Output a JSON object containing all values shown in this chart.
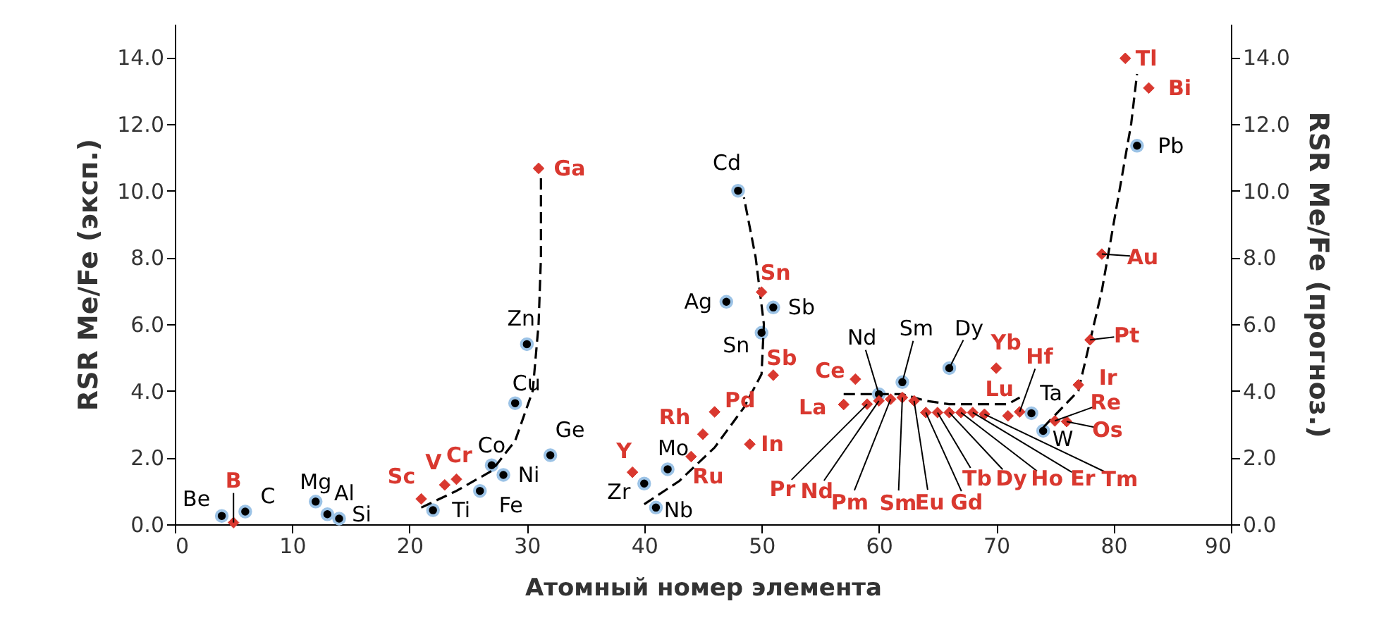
{
  "chart_data": {
    "type": "scatter",
    "xlabel": "Атомный номер элемента",
    "ylabel": "RSR Me/Fe (эксп.)",
    "y2label": "RSR Me/Fe (прогноз.)",
    "xlim": [
      0,
      90
    ],
    "xticks": [
      0,
      10,
      20,
      30,
      40,
      50,
      60,
      70,
      80,
      90
    ],
    "ylim": [
      0,
      15
    ],
    "yticks": [
      {
        "value": 0,
        "label": "0.0"
      },
      {
        "value": 2,
        "label": "2.0"
      },
      {
        "value": 4,
        "label": "4.0"
      },
      {
        "value": 6,
        "label": "6.0"
      },
      {
        "value": 8,
        "label": "8.0"
      },
      {
        "value": 10,
        "label": "10.0"
      },
      {
        "value": 12,
        "label": "12.0"
      },
      {
        "value": 14,
        "label": "14.0"
      }
    ],
    "y2lim": [
      0,
      15
    ],
    "y2ticks": [
      {
        "value": 0,
        "label": "0.0"
      },
      {
        "value": 2,
        "label": "2.0"
      },
      {
        "value": 4,
        "label": "4.0"
      },
      {
        "value": 6,
        "label": "6.0"
      },
      {
        "value": 8,
        "label": "8.0"
      },
      {
        "value": 10,
        "label": "10.0"
      },
      {
        "value": 12,
        "label": "12.0"
      },
      {
        "value": 14,
        "label": "14.0"
      }
    ],
    "grid": false,
    "series": [
      {
        "type": "scatter",
        "marker": "circle",
        "color": "#000000",
        "x": [
          4,
          6,
          12,
          13,
          14,
          22,
          26,
          27,
          28,
          29,
          30,
          32,
          40,
          41,
          42,
          47,
          48,
          50,
          51,
          60,
          62,
          66,
          73,
          74,
          82
        ],
        "values": [
          0.25,
          0.38,
          0.68,
          0.3,
          0.17,
          0.42,
          1.0,
          1.77,
          1.48,
          3.63,
          5.4,
          2.07,
          1.22,
          0.5,
          1.65,
          6.67,
          10.0,
          5.74,
          6.5,
          3.9,
          4.26,
          4.68,
          3.33,
          2.8,
          11.35
        ]
      },
      {
        "type": "scatter",
        "marker": "diamond",
        "axis": "y2",
        "color": "#d9382f",
        "x": [
          5,
          21,
          23,
          24,
          31,
          39,
          44,
          45,
          46,
          49,
          50,
          51,
          57,
          58,
          59,
          60,
          61,
          62,
          63,
          64,
          65,
          66,
          67,
          68,
          69,
          70,
          71,
          72,
          75,
          76,
          77,
          78,
          79,
          81,
          83
        ],
        "values": [
          0.05,
          0.76,
          1.18,
          1.35,
          10.67,
          1.56,
          2.03,
          2.7,
          3.37,
          2.4,
          6.96,
          4.47,
          3.59,
          4.35,
          3.6,
          3.7,
          3.75,
          3.8,
          3.7,
          3.35,
          3.35,
          3.35,
          3.35,
          3.35,
          3.3,
          4.68,
          3.25,
          3.37,
          3.1,
          3.08,
          4.18,
          5.53,
          8.1,
          13.97,
          13.08
        ]
      },
      {
        "type": "line",
        "line_style": "dashed",
        "marker": "none",
        "color": "#000000",
        "x": [
          21,
          24,
          27,
          29,
          30.5,
          31,
          31.2,
          31.2
        ],
        "values": [
          0.5,
          1.0,
          1.6,
          2.5,
          4.0,
          6.0,
          8.0,
          10.4
        ]
      },
      {
        "type": "line",
        "line_style": "dashed",
        "marker": "none",
        "color": "#000000",
        "x": [
          40,
          43,
          46,
          48.5,
          50,
          50.2,
          49.5,
          48.5
        ],
        "values": [
          0.6,
          1.3,
          2.3,
          3.5,
          4.5,
          6.0,
          8.0,
          9.8
        ]
      },
      {
        "type": "line",
        "line_style": "dashed",
        "marker": "none",
        "color": "#000000",
        "x": [
          57,
          62,
          64,
          66,
          71,
          72
        ],
        "values": [
          3.9,
          3.9,
          3.7,
          3.6,
          3.6,
          3.8
        ]
      },
      {
        "type": "line",
        "line_style": "dashed",
        "marker": "none",
        "color": "#000000",
        "x": [
          74,
          77,
          79,
          80.5,
          81.5,
          82
        ],
        "values": [
          2.9,
          4.0,
          7.0,
          10.0,
          12.0,
          13.5
        ]
      }
    ],
    "annotations": [
      {
        "text": "Be",
        "x": 4,
        "y": 0.25
      },
      {
        "text": "C",
        "x": 6,
        "y": 0.38
      },
      {
        "text": "Mg",
        "x": 12,
        "y": 0.68
      },
      {
        "text": "Al",
        "x": 13,
        "y": 0.3
      },
      {
        "text": "Si",
        "x": 14,
        "y": 0.17
      },
      {
        "text": "Ti",
        "x": 22,
        "y": 0.42
      },
      {
        "text": "Fe",
        "x": 26,
        "y": 1.0
      },
      {
        "text": "Co",
        "x": 27,
        "y": 1.77
      },
      {
        "text": "Ni",
        "x": 28,
        "y": 1.48
      },
      {
        "text": "Cu",
        "x": 29,
        "y": 3.63
      },
      {
        "text": "Zn",
        "x": 30,
        "y": 5.4
      },
      {
        "text": "Ge",
        "x": 32,
        "y": 2.07
      },
      {
        "text": "Zr",
        "x": 40,
        "y": 1.22
      },
      {
        "text": "Nb",
        "x": 41,
        "y": 0.5
      },
      {
        "text": "Mo",
        "x": 42,
        "y": 1.65
      },
      {
        "text": "Ag",
        "x": 47,
        "y": 6.67
      },
      {
        "text": "Cd",
        "x": 48,
        "y": 10.0
      },
      {
        "text": "Sn",
        "x": 50,
        "y": 5.74
      },
      {
        "text": "Sb",
        "x": 51,
        "y": 6.5
      },
      {
        "text": "Nd",
        "x": 60,
        "y": 3.9
      },
      {
        "text": "Sm",
        "x": 62,
        "y": 4.26
      },
      {
        "text": "Dy",
        "x": 66,
        "y": 4.68
      },
      {
        "text": "Ta",
        "x": 73,
        "y": 3.33
      },
      {
        "text": "W",
        "x": 74,
        "y": 2.8
      },
      {
        "text": "Pb",
        "x": 82,
        "y": 11.35
      },
      {
        "text": "B",
        "x": 5,
        "y": 0.05
      },
      {
        "text": "Sc",
        "x": 21,
        "y": 0.76
      },
      {
        "text": "V",
        "x": 23,
        "y": 1.18
      },
      {
        "text": "Cr",
        "x": 24,
        "y": 1.35
      },
      {
        "text": "Ga",
        "x": 31,
        "y": 10.67
      },
      {
        "text": "Y",
        "x": 39,
        "y": 1.56
      },
      {
        "text": "Ru",
        "x": 44,
        "y": 2.03
      },
      {
        "text": "Rh",
        "x": 45,
        "y": 2.7
      },
      {
        "text": "Pd",
        "x": 46,
        "y": 3.37
      },
      {
        "text": "In",
        "x": 49,
        "y": 2.4
      },
      {
        "text": "Sn",
        "x": 50,
        "y": 6.96
      },
      {
        "text": "Sb",
        "x": 51,
        "y": 4.47
      },
      {
        "text": "La",
        "x": 57,
        "y": 3.59
      },
      {
        "text": "Ce",
        "x": 58,
        "y": 4.35
      },
      {
        "text": "Pr",
        "x": 59,
        "y": 3.6
      },
      {
        "text": "Nd",
        "x": 60,
        "y": 3.7
      },
      {
        "text": "Pm",
        "x": 61,
        "y": 3.75
      },
      {
        "text": "Sm",
        "x": 62,
        "y": 3.8
      },
      {
        "text": "Eu",
        "x": 63,
        "y": 3.7
      },
      {
        "text": "Gd",
        "x": 64,
        "y": 3.35
      },
      {
        "text": "Tb",
        "x": 65,
        "y": 3.35
      },
      {
        "text": "Dy",
        "x": 66,
        "y": 3.35
      },
      {
        "text": "Ho",
        "x": 67,
        "y": 3.35
      },
      {
        "text": "Er",
        "x": 68,
        "y": 3.35
      },
      {
        "text": "Tm",
        "x": 69,
        "y": 3.3
      },
      {
        "text": "Yb",
        "x": 70,
        "y": 4.68
      },
      {
        "text": "Lu",
        "x": 71,
        "y": 3.25
      },
      {
        "text": "Hf",
        "x": 72,
        "y": 3.37
      },
      {
        "text": "Re",
        "x": 75,
        "y": 3.1
      },
      {
        "text": "Os",
        "x": 76,
        "y": 3.08
      },
      {
        "text": "Ir",
        "x": 77,
        "y": 4.18
      },
      {
        "text": "Pt",
        "x": 78,
        "y": 5.53
      },
      {
        "text": "Au",
        "x": 79,
        "y": 8.1
      },
      {
        "text": "Tl",
        "x": 81,
        "y": 13.97
      },
      {
        "text": "Bi",
        "x": 83,
        "y": 13.08
      }
    ]
  }
}
